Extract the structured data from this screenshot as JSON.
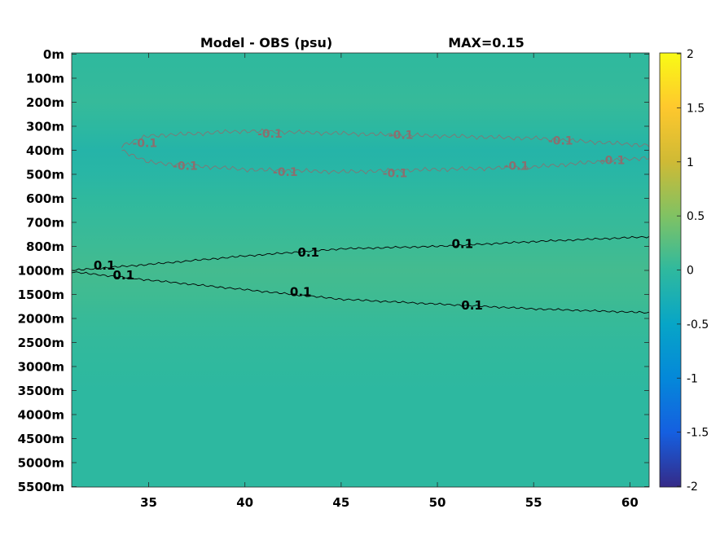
{
  "chart_data": {
    "type": "heatmap",
    "title": "Model - OBS (psu)",
    "subtitle": "MAX=0.15",
    "xlim": [
      31,
      61
    ],
    "x_ticks": [
      35,
      40,
      45,
      50,
      55,
      60
    ],
    "y_ticks": [
      "0m",
      "100m",
      "200m",
      "300m",
      "400m",
      "500m",
      "600m",
      "700m",
      "800m",
      "1000m",
      "1500m",
      "2000m",
      "2500m",
      "3000m",
      "3500m",
      "4000m",
      "4500m",
      "5000m",
      "5500m"
    ],
    "y_scale": "nonuniform depth levels",
    "colorbar": {
      "colormap": "parula",
      "range": [
        -2,
        2
      ],
      "ticks": [
        "2",
        "1.5",
        "1",
        "0.5",
        "0",
        "-0.5",
        "-1",
        "-1.5",
        "-2"
      ]
    },
    "depth_profile": [
      {
        "depth": "0m",
        "value": 0.0
      },
      {
        "depth": "100m",
        "value": 0.02
      },
      {
        "depth": "200m",
        "value": 0.04
      },
      {
        "depth": "300m",
        "value": -0.02
      },
      {
        "depth": "400m",
        "value": -0.12
      },
      {
        "depth": "500m",
        "value": -0.08
      },
      {
        "depth": "600m",
        "value": 0.0
      },
      {
        "depth": "700m",
        "value": 0.04
      },
      {
        "depth": "800m",
        "value": 0.08
      },
      {
        "depth": "1000m",
        "value": 0.13
      },
      {
        "depth": "1500m",
        "value": 0.1
      },
      {
        "depth": "2000m",
        "value": 0.05
      },
      {
        "depth": "2500m",
        "value": 0.02
      },
      {
        "depth": "3000m",
        "value": 0.0
      },
      {
        "depth": "3500m",
        "value": -0.02
      },
      {
        "depth": "4000m",
        "value": -0.02
      },
      {
        "depth": "4500m",
        "value": -0.02
      },
      {
        "depth": "5000m",
        "value": -0.02
      },
      {
        "depth": "5500m",
        "value": -0.02
      }
    ],
    "contours": [
      {
        "level": 0.1,
        "label": "0.1",
        "points": [
          [
            31,
            1000
          ],
          [
            35,
            950
          ],
          [
            40,
            880
          ],
          [
            45,
            820
          ],
          [
            50,
            800
          ],
          [
            55,
            780
          ],
          [
            61,
            760
          ]
        ]
      },
      {
        "level": 0.1,
        "label": "0.1",
        "points": [
          [
            31,
            1030
          ],
          [
            35,
            1200
          ],
          [
            40,
            1400
          ],
          [
            45,
            1600
          ],
          [
            50,
            1700
          ],
          [
            55,
            1800
          ],
          [
            61,
            1880
          ]
        ]
      },
      {
        "level": -0.1,
        "label": "-0.1",
        "points": [
          [
            33.6,
            380
          ],
          [
            35,
            340
          ],
          [
            40,
            320
          ],
          [
            45,
            330
          ],
          [
            50,
            340
          ],
          [
            55,
            350
          ],
          [
            61,
            380
          ]
        ]
      },
      {
        "level": -0.1,
        "label": "-0.1",
        "points": [
          [
            33.6,
            400
          ],
          [
            35,
            450
          ],
          [
            40,
            480
          ],
          [
            45,
            490
          ],
          [
            50,
            480
          ],
          [
            55,
            470
          ],
          [
            61,
            430
          ]
        ]
      }
    ],
    "contour_labels": [
      {
        "text": "0.1",
        "x": 32.7,
        "y": 960,
        "level": 0.1
      },
      {
        "text": "0.1",
        "x": 33.7,
        "y": 1100,
        "level": 0.1
      },
      {
        "text": "0.1",
        "x": 43.3,
        "y": 850,
        "level": 0.1
      },
      {
        "text": "0.1",
        "x": 42.9,
        "y": 1450,
        "level": 0.1
      },
      {
        "text": "0.1",
        "x": 51.3,
        "y": 790,
        "level": 0.1
      },
      {
        "text": "0.1",
        "x": 51.8,
        "y": 1730,
        "level": 0.1
      },
      {
        "text": "-0.1",
        "x": 34.8,
        "y": 370,
        "level": -0.1
      },
      {
        "text": "-0.1",
        "x": 36.9,
        "y": 465,
        "level": -0.1
      },
      {
        "text": "-0.1",
        "x": 41.3,
        "y": 330,
        "level": -0.1
      },
      {
        "text": "-0.1",
        "x": 42.1,
        "y": 490,
        "level": -0.1
      },
      {
        "text": "-0.1",
        "x": 48.1,
        "y": 335,
        "level": -0.1
      },
      {
        "text": "-0.1",
        "x": 47.8,
        "y": 495,
        "level": -0.1
      },
      {
        "text": "-0.1",
        "x": 54.1,
        "y": 465,
        "level": -0.1
      },
      {
        "text": "-0.1",
        "x": 56.4,
        "y": 360,
        "level": -0.1
      },
      {
        "text": "-0.1",
        "x": 59.1,
        "y": 440,
        "level": -0.1
      }
    ]
  }
}
